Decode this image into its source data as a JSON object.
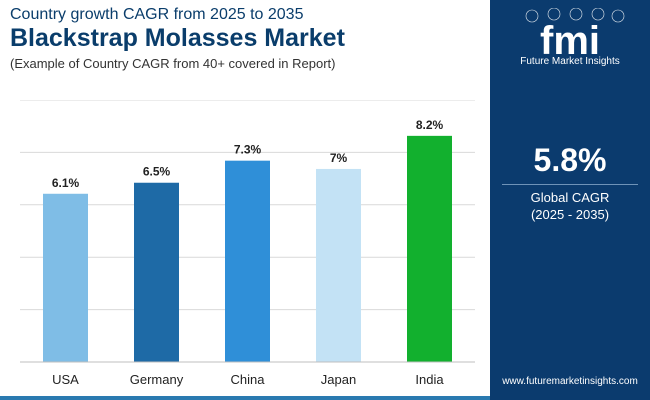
{
  "header": {
    "subtitle": "Country growth CAGR from 2025 to 2035",
    "title": "Blackstrap Molasses Market",
    "note": "(Example of Country CAGR from 40+ covered in Report)"
  },
  "chart_data": {
    "type": "bar",
    "categories": [
      "USA",
      "Germany",
      "China",
      "Japan",
      "India"
    ],
    "values": [
      6.1,
      6.5,
      7.3,
      7.0,
      8.2
    ],
    "data_labels": [
      "6.1%",
      "6.5%",
      "7.3%",
      "7%",
      "8.2%"
    ],
    "colors": [
      "#7fbde6",
      "#1e6aa6",
      "#2f8fd8",
      "#c3e2f5",
      "#12b02e"
    ],
    "title": "Blackstrap Molasses Market",
    "xlabel": "",
    "ylabel": "",
    "ylim": [
      0,
      9.5
    ],
    "grid": true,
    "gridlines": [
      0,
      1.9,
      3.8,
      5.7,
      7.6,
      9.5
    ]
  },
  "sidebar": {
    "logo_text": "fmi",
    "logo_tagline": "Future Market Insights",
    "kpi_value": "5.8%",
    "kpi_label": "Global CAGR",
    "kpi_range": "(2025 - 2035)",
    "website": "www.futuremarketinsights.com",
    "background_color": "#0b3b6e"
  }
}
